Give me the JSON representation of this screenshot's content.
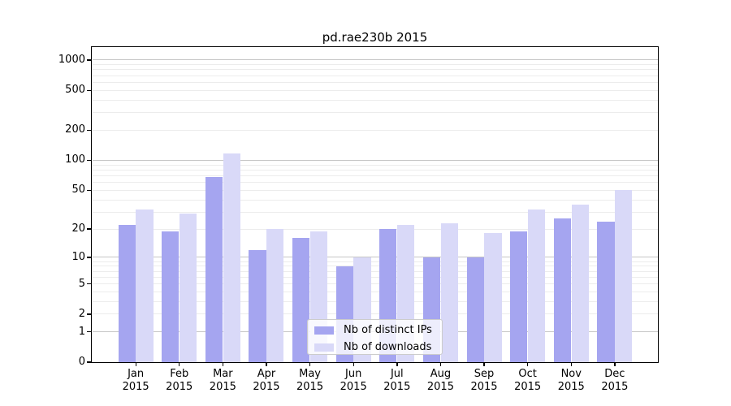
{
  "title": "pd.rae230b 2015",
  "legend": {
    "items": [
      {
        "label": "Nb of distinct IPs"
      },
      {
        "label": "Nb of downloads"
      }
    ]
  },
  "colors": {
    "bar_distinct_ips": "#a5a5f0",
    "bar_downloads": "#d9d9f8",
    "grid_major": "#c6c6c6",
    "grid_minor": "#ececec",
    "frame": "#000000",
    "legend_border": "#cccccc"
  },
  "chart_data": {
    "type": "bar",
    "title": "pd.rae230b 2015",
    "categories": [
      "Jan 2015",
      "Feb 2015",
      "Mar 2015",
      "Apr 2015",
      "May 2015",
      "Jun 2015",
      "Jul 2015",
      "Aug 2015",
      "Sep 2015",
      "Oct 2015",
      "Nov 2015",
      "Dec 2015"
    ],
    "series": [
      {
        "name": "Nb of distinct IPs",
        "color": "#a5a5f0",
        "values": [
          22,
          19,
          68,
          12,
          16,
          8,
          20,
          10,
          10,
          19,
          26,
          24
        ]
      },
      {
        "name": "Nb of downloads",
        "color": "#d9d9f8",
        "values": [
          32,
          29,
          118,
          20,
          19,
          10,
          22,
          23,
          18,
          32,
          36,
          50
        ]
      }
    ],
    "xlabel": "",
    "ylabel": "",
    "yscale": "log1p",
    "yticks": [
      0,
      1,
      2,
      5,
      10,
      20,
      50,
      100,
      200,
      500,
      1000
    ],
    "ylim": [
      0,
      1330
    ],
    "grid": "horizontal, minor lines per log decade, darker at 1/10/100/1000",
    "legend_position": "lower center inside plot"
  }
}
